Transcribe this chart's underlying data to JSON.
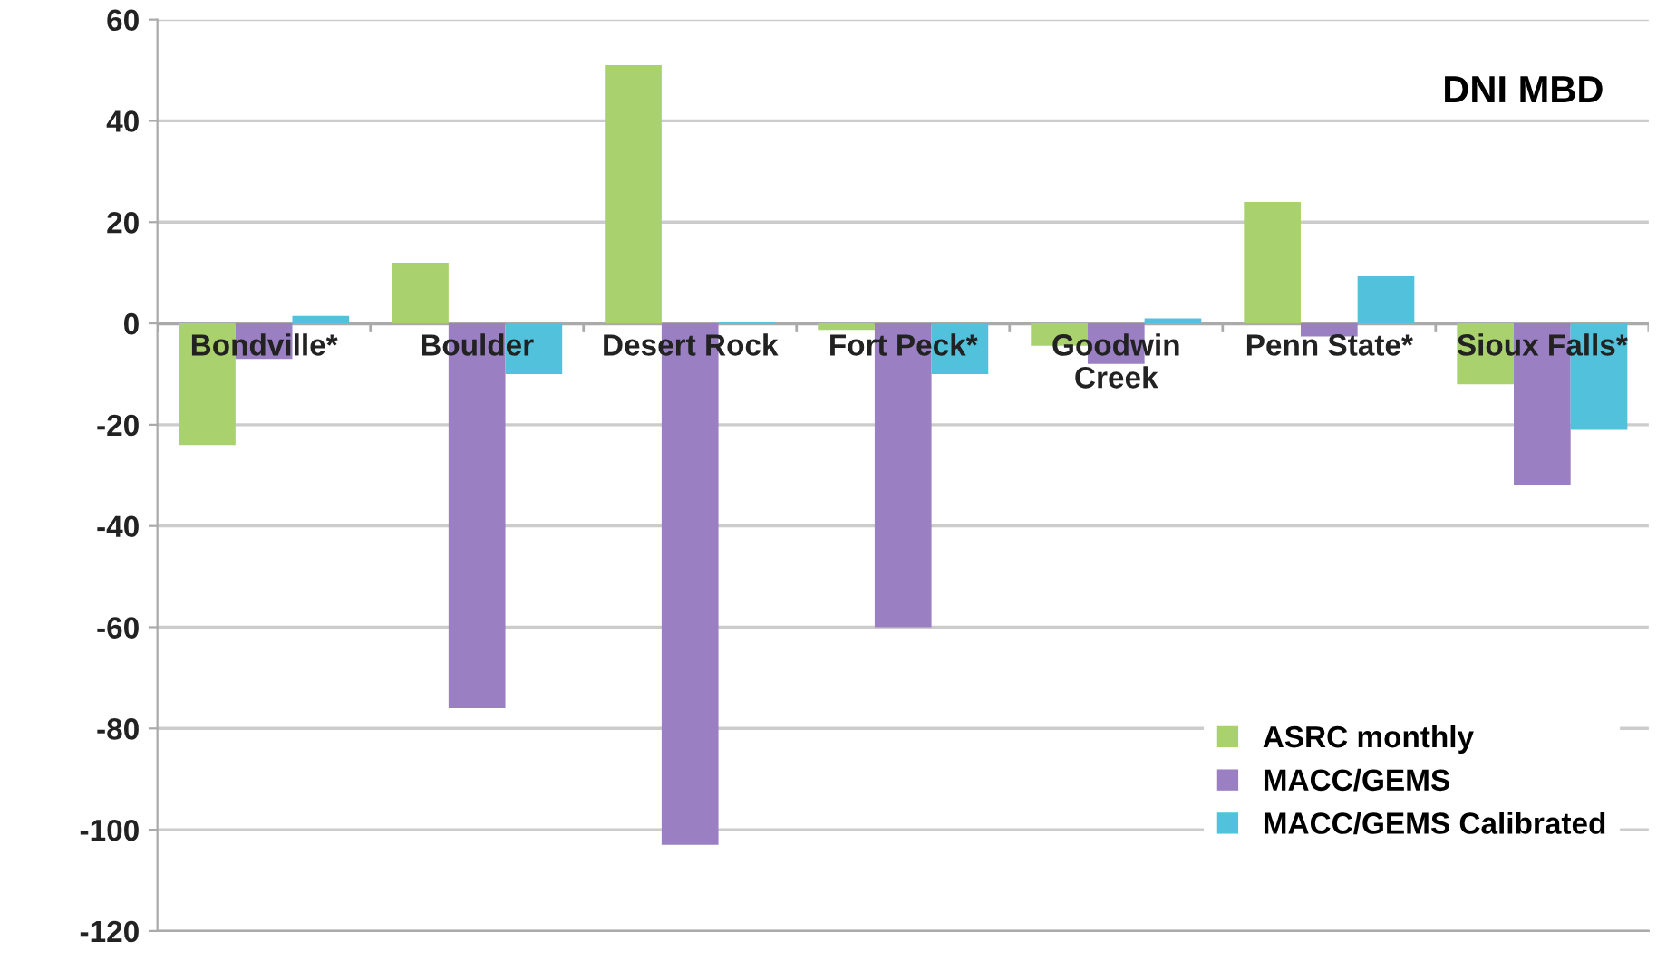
{
  "chart_data": {
    "type": "bar",
    "title": "DNI MBD",
    "categories": [
      "Bondville*",
      "Boulder",
      "Desert Rock",
      "Fort Peck*",
      "Goodwin\nCreek",
      "Penn State*",
      "Sioux Falls*"
    ],
    "series": [
      {
        "name": "ASRC monthly",
        "color": "#a9d26e",
        "values": [
          -24,
          12,
          51,
          -1.3,
          -4.4,
          24,
          -12
        ]
      },
      {
        "name": "MACC/GEMS",
        "color": "#9a80c2",
        "values": [
          -7,
          -76,
          -103,
          -60,
          -8,
          -2.6,
          -32
        ]
      },
      {
        "name": "MACC/GEMS Calibrated",
        "color": "#52c2dc",
        "values": [
          1.5,
          -10,
          0.3,
          -10,
          1,
          9.3,
          -21
        ]
      }
    ],
    "ylim": [
      -120,
      60
    ],
    "yticks": [
      -120,
      -100,
      -80,
      -60,
      -40,
      -20,
      0,
      20,
      40,
      60
    ],
    "grid": "y",
    "legend": "bottom right"
  }
}
